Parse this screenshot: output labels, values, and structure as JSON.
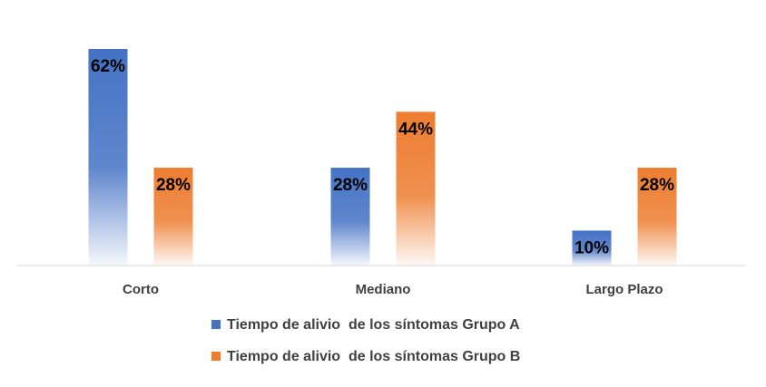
{
  "chart_data": {
    "type": "bar",
    "categories": [
      "Corto",
      "Mediano",
      "Largo Plazo"
    ],
    "series": [
      {
        "name": "Tiempo de alivio  de los síntomas Grupo A",
        "values": [
          62,
          28,
          10
        ],
        "color": "#4472C4"
      },
      {
        "name": "Tiempo de alivio  de los síntomas Grupo B",
        "values": [
          28,
          44,
          28
        ],
        "color": "#ED7D31"
      }
    ],
    "value_suffix": "%",
    "ylim": [
      0,
      62
    ],
    "grid": false,
    "legend_position": "bottom"
  }
}
